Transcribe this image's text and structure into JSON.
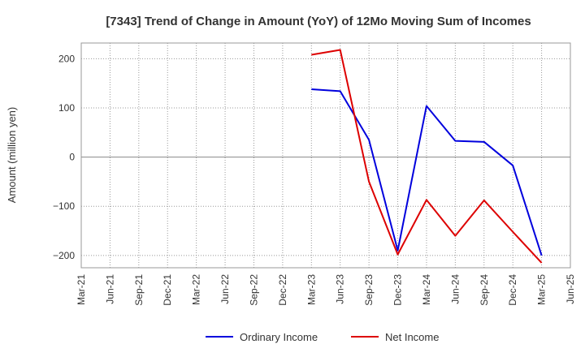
{
  "chart_data": {
    "type": "line",
    "title": "[7343]  Trend of Change in Amount (YoY) of 12Mo Moving Sum of Incomes",
    "xlabel": "",
    "ylabel": "Amount (million yen)",
    "x_ticks": [
      "Mar-21",
      "Jun-21",
      "Sep-21",
      "Dec-21",
      "Mar-22",
      "Jun-22",
      "Sep-22",
      "Dec-22",
      "Mar-23",
      "Jun-23",
      "Sep-23",
      "Dec-23",
      "Mar-24",
      "Jun-24",
      "Sep-24",
      "Dec-24",
      "Mar-25",
      "Jun-25"
    ],
    "y_ticks": [
      200,
      100,
      0,
      -100,
      -200
    ],
    "ylim": [
      -225,
      232
    ],
    "grid": true,
    "legend_position": "bottom",
    "series": [
      {
        "name": "Ordinary Income",
        "color": "#0000dd",
        "x": [
          "Mar-23",
          "Jun-23",
          "Sep-23",
          "Dec-23",
          "Mar-24",
          "Jun-24",
          "Sep-24",
          "Dec-24",
          "Mar-25"
        ],
        "values": [
          138,
          134,
          35,
          -190,
          104,
          33,
          31,
          -17,
          -200
        ]
      },
      {
        "name": "Net Income",
        "color": "#dd0000",
        "x": [
          "Mar-23",
          "Jun-23",
          "Sep-23",
          "Dec-23",
          "Mar-24",
          "Jun-24",
          "Sep-24",
          "Dec-24",
          "Mar-25"
        ],
        "values": [
          208,
          218,
          -50,
          -198,
          -87,
          -160,
          -88,
          -152,
          -215
        ]
      }
    ]
  }
}
